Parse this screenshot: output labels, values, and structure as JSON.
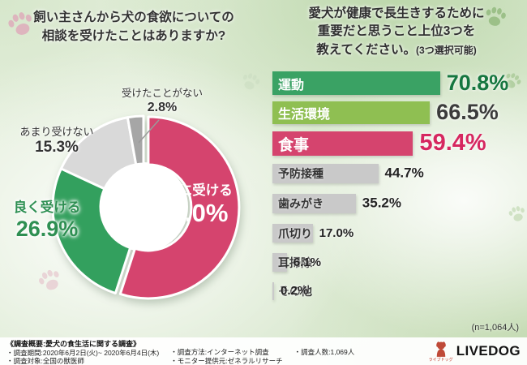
{
  "pie_section": {
    "title_line1": "飼い主さんから犬の食欲についての",
    "title_line2": "相談を受けたことはありますか?"
  },
  "bar_section": {
    "title_line1": "愛犬が健康で長生きするために",
    "title_line2": "重要だと思うこと上位3つを",
    "title_line3": "教えてください。",
    "title_note": "(3つ選択可能)",
    "sample_note": "(n=1,064人)"
  },
  "chart_data": [
    {
      "type": "pie",
      "style": "donut",
      "title": "飼い主さんから犬の食欲についての相談を受けたことはありますか?",
      "labels": [
        "たまに受ける",
        "良く受ける",
        "あまり受けない",
        "受けたことがない"
      ],
      "values": [
        55.0,
        26.9,
        15.3,
        2.8
      ],
      "display": [
        "55.0%",
        "26.9%",
        "15.3%",
        "2.8%"
      ],
      "colors": [
        "#d5446e",
        "#33a05e",
        "#d9d9d9",
        "#a6a6a6"
      ],
      "start_angle_deg": 0,
      "direction": "clockwise"
    },
    {
      "type": "bar",
      "orientation": "horizontal",
      "title": "愛犬が健康で長生きするために重要だと思うこと上位3つを教えてください。(3つ選択可能)",
      "categories": [
        "運動",
        "生活環境",
        "食事",
        "予防接種",
        "歯みがき",
        "爪切り",
        "耳掃除",
        "その他"
      ],
      "values": [
        70.8,
        66.5,
        59.4,
        44.7,
        35.2,
        17.0,
        6.1,
        0.2
      ],
      "display": [
        "70.8%",
        "66.5%",
        "59.4%",
        "44.7%",
        "35.2%",
        "17.0%",
        "6.1%",
        "0.2%"
      ],
      "bar_colors": [
        "#3aa264",
        "#8fbf52",
        "#d5446e",
        "#c9c9c9",
        "#c9c9c9",
        "#c9c9c9",
        "#c9c9c9",
        "#c9c9c9"
      ],
      "xlim": [
        0,
        100
      ],
      "sample_size_note": "(n=1,064人)",
      "legend": "none",
      "grid": false
    }
  ],
  "footer": {
    "survey_title": "《調査概要:愛犬の食生活に関する調査》",
    "period": "・調査期間:2020年6月2日(火)~ 2020年6月4日(木)",
    "target": "・調査対象:全国の獣医師",
    "method": "・調査方法:インターネット調査",
    "monitor": "・モニター提供元:ゼネラルリサーチ",
    "count": "・調査人数:1,069人"
  },
  "logo": {
    "text": "LIVEDOG",
    "sub": "ライブドッグ"
  },
  "colors": {
    "accent_pink": "#d5446e",
    "accent_green": "#33a05e",
    "accent_yellow_green": "#8fbf52",
    "gray_bar": "#c9c9c9",
    "text_dark": "#333333"
  }
}
